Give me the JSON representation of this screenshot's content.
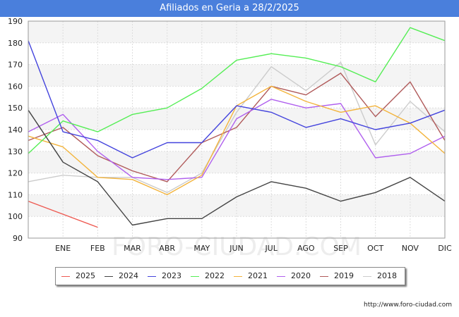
{
  "header": {
    "title": "Afiliados en Geria a 28/2/2025"
  },
  "footer": {
    "source": "http://www.foro-ciudad.com"
  },
  "watermark": "FORO-CIUDAD.COM",
  "chart_data": {
    "type": "line",
    "title": "Afiliados en Geria a 28/2/2025",
    "xlabel": "",
    "ylabel": "",
    "ylim": [
      90,
      190
    ],
    "yticks": [
      90,
      100,
      110,
      120,
      130,
      140,
      150,
      160,
      170,
      180,
      190
    ],
    "categories": [
      "DIC",
      "ENE",
      "FEB",
      "MAR",
      "ABR",
      "MAY",
      "JUN",
      "JUL",
      "AGO",
      "SEP",
      "OCT",
      "NOV",
      "DIC"
    ],
    "x_tick_labels": [
      "",
      "ENE",
      "FEB",
      "MAR",
      "ABR",
      "MAY",
      "JUN",
      "JUL",
      "AGO",
      "SEP",
      "OCT",
      "NOV",
      "DIC"
    ],
    "grid": true,
    "legend_position": "bottom",
    "series": [
      {
        "name": "2025",
        "color": "#ee5a52",
        "values": [
          107,
          101,
          95,
          null,
          null,
          null,
          null,
          null,
          null,
          null,
          null,
          null,
          null
        ]
      },
      {
        "name": "2024",
        "color": "#444444",
        "values": [
          149,
          125,
          116,
          96,
          99,
          99,
          109,
          116,
          113,
          107,
          111,
          118,
          107
        ]
      },
      {
        "name": "2023",
        "color": "#4444dd",
        "values": [
          181,
          139,
          135,
          127,
          134,
          134,
          151,
          148,
          141,
          145,
          140,
          143,
          149
        ]
      },
      {
        "name": "2022",
        "color": "#55ee55",
        "values": [
          129,
          144,
          139,
          147,
          150,
          159,
          172,
          175,
          173,
          169,
          162,
          187,
          181
        ]
      },
      {
        "name": "2021",
        "color": "#f3b43c",
        "values": [
          137,
          132,
          118,
          117,
          110,
          119,
          151,
          160,
          153,
          148,
          151,
          143,
          129
        ]
      },
      {
        "name": "2020",
        "color": "#b060ee",
        "values": [
          139,
          147,
          130,
          118,
          117,
          118,
          145,
          154,
          150,
          152,
          127,
          129,
          137
        ]
      },
      {
        "name": "2019",
        "color": "#b05a5a",
        "values": [
          135,
          141,
          128,
          121,
          116,
          134,
          141,
          160,
          156,
          166,
          146,
          162,
          135
        ]
      },
      {
        "name": "2018",
        "color": "#cccccc",
        "values": [
          116,
          119,
          118,
          118,
          111,
          120,
          148,
          169,
          158,
          171,
          133,
          153,
          139
        ]
      }
    ]
  }
}
